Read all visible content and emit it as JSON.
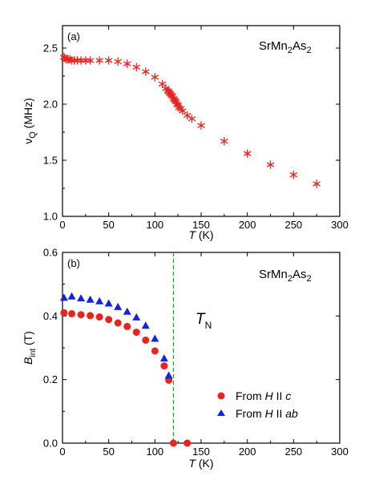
{
  "chart_data": [
    {
      "type": "scatter",
      "panel_label": "(a)",
      "compound": {
        "main": "SrMn",
        "sub1": "2",
        "mid": "As",
        "sub2": "2"
      },
      "xlabel": {
        "italic": "T",
        "rest": " (K)"
      },
      "ylabel": {
        "main": "ν",
        "sub": "Q",
        "rest": " (MHz)"
      },
      "xlim": [
        0,
        300
      ],
      "ylim": [
        1.0,
        2.7
      ],
      "xticks": [
        "0",
        "50",
        "100",
        "150",
        "200",
        "250",
        "300"
      ],
      "yticks": [
        "1.0",
        "1.5",
        "2.0",
        "2.5"
      ],
      "ytick_values": [
        1.0,
        1.5,
        2.0,
        2.5
      ],
      "marker": "asterisk",
      "color": "#e8241f",
      "series": [
        {
          "x": [
            1.6,
            2.5,
            4.2,
            6,
            8,
            10,
            13,
            16,
            20,
            25,
            30,
            40,
            50,
            60,
            70,
            80,
            90,
            100,
            108,
            112,
            114,
            115,
            116,
            117,
            118,
            119,
            120,
            121,
            122,
            123,
            124,
            125,
            126,
            128,
            130,
            135,
            140,
            150,
            175,
            200,
            225,
            250,
            275
          ],
          "y": [
            2.42,
            2.41,
            2.4,
            2.4,
            2.4,
            2.39,
            2.39,
            2.39,
            2.39,
            2.39,
            2.39,
            2.39,
            2.39,
            2.38,
            2.36,
            2.33,
            2.29,
            2.24,
            2.18,
            2.14,
            2.12,
            2.11,
            2.1,
            2.09,
            2.08,
            2.07,
            2.05,
            2.04,
            2.03,
            2.02,
            2.0,
            1.99,
            1.97,
            1.96,
            1.94,
            1.9,
            1.87,
            1.81,
            1.67,
            1.56,
            1.46,
            1.37,
            1.29
          ]
        }
      ]
    },
    {
      "type": "scatter",
      "panel_label": "(b)",
      "compound": {
        "main": "SrMn",
        "sub1": "2",
        "mid": "As",
        "sub2": "2"
      },
      "xlabel": {
        "italic": "T",
        "rest": " (K)"
      },
      "ylabel": {
        "italic": "B",
        "sub": "int",
        "rest": " (T)"
      },
      "xlim": [
        0,
        300
      ],
      "ylim": [
        0.0,
        0.6
      ],
      "xticks": [
        "0",
        "50",
        "100",
        "150",
        "200",
        "250",
        "300"
      ],
      "yticks": [
        "0.0",
        "0.2",
        "0.4",
        "0.6"
      ],
      "ytick_values": [
        0.0,
        0.2,
        0.4,
        0.6
      ],
      "tn_label": {
        "italic": "T",
        "sub": "N"
      },
      "tn_x": 120,
      "tn_color": "#2a9a2a",
      "series": [
        {
          "name_parts": {
            "pre": "From ",
            "italic1": "H",
            "mid": " II ",
            "italic2": "c"
          },
          "marker": "circle",
          "color": "#e8241f",
          "x": [
            1.6,
            10,
            20,
            30,
            40,
            50,
            60,
            70,
            80,
            90,
            100,
            110,
            115,
            120,
            135
          ],
          "y": [
            0.41,
            0.407,
            0.404,
            0.401,
            0.397,
            0.389,
            0.378,
            0.367,
            0.349,
            0.324,
            0.29,
            0.243,
            0.198,
            0.0,
            0.0
          ]
        },
        {
          "name_parts": {
            "pre": "From ",
            "italic1": "H",
            "mid": " II ",
            "italic2": "ab"
          },
          "marker": "triangle",
          "color": "#1522e0",
          "x": [
            1.6,
            10,
            20,
            30,
            40,
            50,
            60,
            70,
            80,
            90,
            100,
            110,
            115
          ],
          "y": [
            0.458,
            0.462,
            0.456,
            0.452,
            0.447,
            0.44,
            0.429,
            0.414,
            0.396,
            0.37,
            0.329,
            0.267,
            0.213
          ]
        }
      ]
    }
  ]
}
